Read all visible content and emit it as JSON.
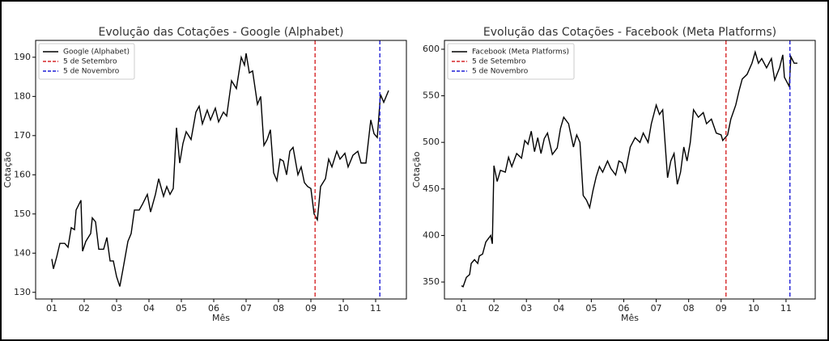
{
  "chart_data": [
    {
      "type": "line",
      "title": "Evolução das Cotações - Google (Alphabet)",
      "xlabel": "Mês",
      "ylabel": "Cotação",
      "xlim": [
        0.5,
        11.95
      ],
      "ylim": [
        128.3,
        194.3
      ],
      "xticks": [
        {
          "value": 1,
          "label": "01"
        },
        {
          "value": 2,
          "label": "02"
        },
        {
          "value": 3,
          "label": "03"
        },
        {
          "value": 4,
          "label": "04"
        },
        {
          "value": 5,
          "label": "05"
        },
        {
          "value": 6,
          "label": "06"
        },
        {
          "value": 7,
          "label": "07"
        },
        {
          "value": 8,
          "label": "08"
        },
        {
          "value": 9,
          "label": "09"
        },
        {
          "value": 10,
          "label": "10"
        },
        {
          "value": 11,
          "label": "11"
        }
      ],
      "yticks": [
        130,
        140,
        150,
        160,
        170,
        180,
        190
      ],
      "legend": "upper left",
      "x": [
        1.0,
        1.05,
        1.15,
        1.25,
        1.4,
        1.5,
        1.6,
        1.7,
        1.75,
        1.9,
        1.95,
        2.05,
        2.2,
        2.25,
        2.35,
        2.45,
        2.6,
        2.7,
        2.8,
        2.9,
        3.0,
        3.1,
        3.2,
        3.35,
        3.45,
        3.55,
        3.7,
        3.8,
        3.95,
        4.05,
        4.2,
        4.3,
        4.45,
        4.55,
        4.65,
        4.75,
        4.85,
        4.95,
        5.05,
        5.15,
        5.3,
        5.45,
        5.55,
        5.65,
        5.8,
        5.9,
        6.05,
        6.15,
        6.3,
        6.4,
        6.55,
        6.7,
        6.85,
        6.95,
        7.0,
        7.1,
        7.2,
        7.35,
        7.45,
        7.55,
        7.65,
        7.75,
        7.85,
        7.95,
        8.05,
        8.15,
        8.25,
        8.35,
        8.45,
        8.6,
        8.7,
        8.8,
        8.9,
        9.0,
        9.1,
        9.2,
        9.3,
        9.45,
        9.55,
        9.65,
        9.8,
        9.9,
        10.05,
        10.15,
        10.3,
        10.45,
        10.55,
        10.7,
        10.85,
        10.95,
        11.05,
        11.15,
        11.25,
        11.4
      ],
      "series": [
        {
          "name": "Google (Alphabet)",
          "color": "#000000",
          "values": [
            138.5,
            136,
            139,
            142.5,
            142.5,
            141.5,
            146.5,
            146,
            151,
            153.5,
            140.5,
            143,
            145,
            149,
            148,
            141,
            141,
            144,
            138,
            138,
            134,
            131.5,
            136,
            143,
            145,
            151,
            151,
            152.5,
            155,
            150.5,
            155,
            159,
            154.5,
            157,
            155,
            156.5,
            172,
            163,
            168,
            171,
            169,
            176,
            177.5,
            173,
            176.5,
            174,
            177,
            173.5,
            176,
            175,
            184,
            182,
            190,
            188,
            191,
            186,
            186.5,
            178,
            180,
            167.5,
            169,
            171.5,
            160.5,
            158.5,
            164,
            163.5,
            160,
            166,
            167,
            160,
            162,
            158,
            157,
            156.5,
            150,
            148.5,
            157,
            159,
            164,
            162,
            166,
            164,
            165.5,
            162,
            165,
            166,
            163,
            163,
            174,
            170.5,
            169.5,
            180.5,
            178.5,
            181.5
          ]
        }
      ],
      "vlines": [
        {
          "name": "5 de Setembro",
          "x": 9.13,
          "color": "#d62728"
        },
        {
          "name": "5 de Novembro",
          "x": 11.13,
          "color": "#1f1fd6"
        }
      ]
    },
    {
      "type": "line",
      "title": "Evolução das Cotações - Facebook (Meta Platforms)",
      "xlabel": "Mês",
      "ylabel": "Cotação",
      "xlim": [
        0.475,
        11.9
      ],
      "ylim": [
        331.8,
        609.5
      ],
      "xticks": [
        {
          "value": 1,
          "label": "01"
        },
        {
          "value": 2,
          "label": "02"
        },
        {
          "value": 3,
          "label": "03"
        },
        {
          "value": 4,
          "label": "04"
        },
        {
          "value": 5,
          "label": "05"
        },
        {
          "value": 6,
          "label": "06"
        },
        {
          "value": 7,
          "label": "07"
        },
        {
          "value": 8,
          "label": "08"
        },
        {
          "value": 9,
          "label": "09"
        },
        {
          "value": 10,
          "label": "10"
        },
        {
          "value": 11,
          "label": "11"
        }
      ],
      "yticks": [
        350,
        400,
        450,
        500,
        550,
        600
      ],
      "legend": "upper left",
      "x": [
        1.0,
        1.05,
        1.15,
        1.25,
        1.3,
        1.4,
        1.5,
        1.55,
        1.65,
        1.75,
        1.9,
        1.95,
        2.0,
        2.1,
        2.2,
        2.35,
        2.45,
        2.55,
        2.7,
        2.85,
        2.95,
        3.05,
        3.15,
        3.25,
        3.35,
        3.45,
        3.55,
        3.65,
        3.8,
        3.95,
        4.05,
        4.15,
        4.3,
        4.45,
        4.55,
        4.65,
        4.75,
        4.85,
        4.95,
        5.05,
        5.15,
        5.25,
        5.35,
        5.5,
        5.6,
        5.75,
        5.85,
        5.95,
        6.05,
        6.2,
        6.35,
        6.5,
        6.6,
        6.75,
        6.85,
        7.0,
        7.1,
        7.2,
        7.35,
        7.45,
        7.55,
        7.65,
        7.75,
        7.85,
        7.95,
        8.05,
        8.15,
        8.3,
        8.45,
        8.55,
        8.7,
        8.85,
        9.0,
        9.05,
        9.2,
        9.3,
        9.45,
        9.55,
        9.65,
        9.8,
        9.95,
        10.05,
        10.15,
        10.25,
        10.4,
        10.55,
        10.65,
        10.8,
        10.9,
        10.95,
        11.1,
        11.15,
        11.25,
        11.35
      ],
      "series": [
        {
          "name": "Facebook (Meta Platforms)",
          "color": "#000000",
          "values": [
            346,
            345,
            355,
            358,
            370,
            374,
            370,
            378,
            380,
            393,
            400,
            391,
            475,
            458,
            470,
            468,
            484,
            474,
            488,
            483,
            502,
            498,
            512,
            490,
            505,
            488,
            504,
            510,
            487,
            494,
            515,
            527,
            520,
            495,
            508,
            500,
            443,
            438,
            430,
            448,
            463,
            474,
            468,
            480,
            472,
            465,
            480,
            478,
            468,
            495,
            505,
            500,
            510,
            500,
            520,
            540,
            530,
            535,
            462,
            480,
            488,
            455,
            468,
            495,
            480,
            500,
            535,
            527,
            532,
            520,
            525,
            510,
            508,
            502,
            508,
            525,
            540,
            555,
            568,
            573,
            585,
            597,
            585,
            590,
            580,
            590,
            567,
            580,
            594,
            570,
            560,
            592,
            585,
            585
          ]
        }
      ],
      "vlines": [
        {
          "name": "5 de Setembro",
          "x": 9.15,
          "color": "#d62728"
        },
        {
          "name": "5 de Novembro",
          "x": 11.12,
          "color": "#1f1fd6"
        }
      ]
    }
  ]
}
